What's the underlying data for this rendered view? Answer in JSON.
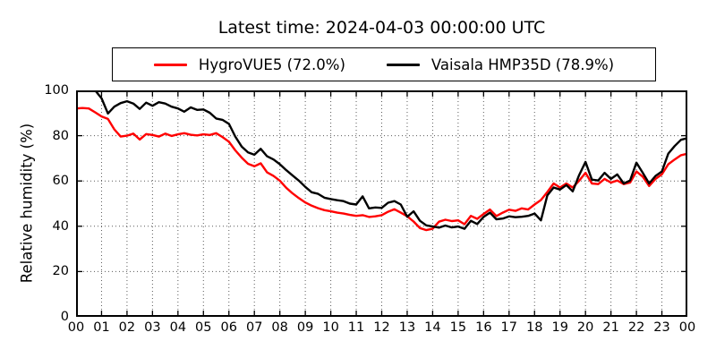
{
  "title": "Latest time: 2024-04-03 00:00:00 UTC",
  "ylabel": "Relative humidity (%)",
  "colors": {
    "series_red": "#ff0000",
    "series_black": "#000000",
    "grid": "#5a5a5a",
    "frame": "#000000",
    "background": "#ffffff"
  },
  "chart_data": {
    "type": "line",
    "title": "Latest time: 2024-04-03 00:00:00 UTC",
    "xlabel": "",
    "ylabel": "Relative humidity (%)",
    "xlim_hours": [
      0,
      24
    ],
    "ylim": [
      0,
      100
    ],
    "grid": "dotted, both axes, every hour and every 20%",
    "legend_position": "top-center, horizontal, boxed",
    "x_ticklabels": [
      "00",
      "01",
      "02",
      "03",
      "04",
      "05",
      "06",
      "07",
      "08",
      "09",
      "10",
      "11",
      "12",
      "13",
      "14",
      "15",
      "16",
      "17",
      "18",
      "19",
      "20",
      "21",
      "22",
      "23",
      "00"
    ],
    "y_ticks": [
      0,
      20,
      40,
      60,
      80,
      100
    ],
    "x_step_hours": 0.25,
    "series": [
      {
        "name": "HygroVUE5 (72.0%)",
        "latest_value_pct": 72.0,
        "color": "#ff0000",
        "values": [
          92.0,
          92.2,
          92.0,
          90.3,
          88.5,
          87.4,
          82.8,
          79.6,
          80.0,
          80.9,
          78.3,
          80.7,
          80.3,
          79.6,
          80.9,
          79.9,
          80.6,
          81.1,
          80.4,
          80.1,
          80.6,
          80.3,
          81.1,
          79.4,
          77.3,
          73.5,
          70.3,
          67.6,
          66.5,
          67.8,
          63.8,
          62.2,
          60.1,
          57.0,
          54.5,
          52.4,
          50.5,
          49.1,
          48.0,
          47.1,
          46.6,
          46.0,
          45.6,
          45.0,
          44.6,
          44.9,
          44.1,
          44.4,
          44.9,
          46.4,
          47.5,
          46.0,
          44.4,
          42.1,
          39.2,
          38.3,
          38.9,
          42.0,
          42.9,
          42.3,
          42.6,
          40.9,
          44.6,
          43.3,
          45.4,
          47.4,
          44.5,
          46.0,
          47.3,
          46.8,
          47.9,
          47.4,
          49.6,
          51.6,
          55.1,
          58.9,
          57.1,
          58.9,
          57.1,
          60.1,
          63.6,
          58.9,
          58.6,
          60.9,
          59.3,
          60.2,
          58.6,
          59.3,
          64.2,
          61.9,
          57.8,
          60.9,
          62.9,
          67.4,
          69.5,
          71.4,
          72.0
        ]
      },
      {
        "name": "Vaisala HMP35D (78.9%)",
        "latest_value_pct": 78.9,
        "color": "#000000",
        "values": [
          100.0,
          100.0,
          100.0,
          100.0,
          96.5,
          89.8,
          92.8,
          94.4,
          95.2,
          94.2,
          91.8,
          94.6,
          93.2,
          94.8,
          94.2,
          92.8,
          92.0,
          90.6,
          92.5,
          91.4,
          91.6,
          90.1,
          87.6,
          87.0,
          85.2,
          79.6,
          75.2,
          72.6,
          71.6,
          74.2,
          70.9,
          69.5,
          67.4,
          64.8,
          62.4,
          60.1,
          57.4,
          55.0,
          54.3,
          52.6,
          52.0,
          51.5,
          51.1,
          50.0,
          49.6,
          53.2,
          47.9,
          48.3,
          48.1,
          50.4,
          51.1,
          49.6,
          44.2,
          46.6,
          42.4,
          40.4,
          39.9,
          39.4,
          40.3,
          39.5,
          39.9,
          38.9,
          42.4,
          41.0,
          44.1,
          46.0,
          43.1,
          43.4,
          44.4,
          44.0,
          44.2,
          44.6,
          45.6,
          42.6,
          53.6,
          57.1,
          56.2,
          58.2,
          55.4,
          62.6,
          68.4,
          60.6,
          60.2,
          63.6,
          60.9,
          62.9,
          58.9,
          60.2,
          68.1,
          63.6,
          58.9,
          62.2,
          64.2,
          72.1,
          75.4,
          78.2,
          78.9
        ]
      }
    ]
  }
}
